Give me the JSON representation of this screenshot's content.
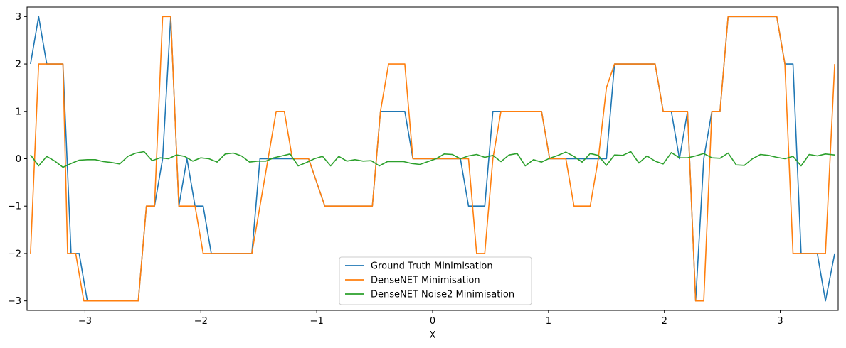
{
  "chart_data": {
    "type": "line",
    "title": "",
    "xlabel": "X",
    "ylabel": "",
    "xlim": [
      -3.5,
      3.5
    ],
    "ylim": [
      -3.2,
      3.2
    ],
    "xticks": [
      -3,
      -2,
      -1,
      0,
      1,
      2,
      3
    ],
    "yticks": [
      -3,
      -2,
      -1,
      0,
      1,
      2,
      3
    ],
    "tick_labels_x": [
      "−3",
      "−2",
      "−1",
      "0",
      "1",
      "2",
      "3"
    ],
    "tick_labels_y": [
      "−3",
      "−2",
      "−1",
      "0",
      "1",
      "2",
      "3"
    ],
    "grid": false,
    "legend_position": "bottom-center",
    "series": [
      {
        "name": "Ground Truth Minimisation",
        "color": "#1f77b4",
        "x": [
          -3.47,
          -3.4,
          -3.33,
          -3.26,
          -3.19,
          -3.12,
          -3.05,
          -2.98,
          -2.54,
          -2.47,
          -2.4,
          -2.33,
          -2.26,
          -2.19,
          -2.12,
          -2.05,
          -1.98,
          -1.91,
          -1.84,
          -1.77,
          -1.56,
          -1.49,
          -1.35,
          -1.21,
          -1.07,
          -0.93,
          -0.86,
          -0.52,
          -0.45,
          -0.38,
          -0.24,
          -0.17,
          -0.1,
          0.24,
          0.31,
          0.38,
          0.45,
          0.52,
          0.59,
          0.94,
          1.01,
          1.5,
          1.57,
          1.64,
          1.92,
          1.99,
          2.06,
          2.13,
          2.2,
          2.27,
          2.34,
          2.41,
          2.48,
          2.55,
          2.62,
          2.97,
          3.04,
          3.11,
          3.18,
          3.25,
          3.32,
          3.39,
          3.47
        ],
        "y": [
          2,
          3,
          2,
          2,
          2,
          -2,
          -2,
          -3,
          -3,
          -1,
          -1,
          0,
          3,
          -1,
          0,
          -1,
          -1,
          -2,
          -2,
          -2,
          -2,
          0,
          0,
          0,
          0,
          -1,
          -1,
          -1,
          1,
          1,
          1,
          0,
          0,
          0,
          -1,
          -1,
          -1,
          1,
          1,
          1,
          0,
          0,
          2,
          2,
          2,
          1,
          1,
          0,
          1,
          -3,
          0,
          1,
          1,
          3,
          3,
          3,
          2,
          2,
          -2,
          -2,
          -2,
          -3,
          -2
        ]
      },
      {
        "name": "DenseNET Minimisation",
        "color": "#ff7f0e",
        "x": [
          -3.47,
          -3.4,
          -3.33,
          -3.26,
          -3.19,
          -3.15,
          -3.08,
          -3.01,
          -2.94,
          -2.54,
          -2.47,
          -2.4,
          -2.33,
          -2.26,
          -2.19,
          -2.12,
          -2.05,
          -1.98,
          -1.91,
          -1.84,
          -1.77,
          -1.56,
          -1.42,
          -1.35,
          -1.28,
          -1.21,
          -1.07,
          -0.93,
          -0.86,
          -0.52,
          -0.45,
          -0.38,
          -0.31,
          -0.24,
          -0.17,
          -0.1,
          0.31,
          0.38,
          0.45,
          0.52,
          0.59,
          0.94,
          1.01,
          1.15,
          1.22,
          1.36,
          1.43,
          1.5,
          1.57,
          1.64,
          1.92,
          1.99,
          2.06,
          2.2,
          2.27,
          2.34,
          2.41,
          2.48,
          2.55,
          2.62,
          2.97,
          3.04,
          3.11,
          3.18,
          3.25,
          3.32,
          3.39,
          3.47
        ],
        "y": [
          -2,
          2,
          2,
          2,
          2,
          -2,
          -2,
          -3,
          -3,
          -3,
          -1,
          -1,
          3,
          3,
          -1,
          -1,
          -1,
          -2,
          -2,
          -2,
          -2,
          -2,
          0,
          1,
          1,
          0,
          0,
          -1,
          -1,
          -1,
          1,
          2,
          2,
          2,
          0,
          0,
          0,
          -2,
          -2,
          0,
          1,
          1,
          0,
          0,
          -1,
          -1,
          0,
          1.5,
          2,
          2,
          2,
          1,
          1,
          1,
          -3,
          -3,
          1,
          1,
          3,
          3,
          3,
          2,
          -2,
          -2,
          -2,
          -2,
          -2,
          2
        ]
      },
      {
        "name": "DenseNET Noise2 Minimisation",
        "color": "#2ca02c",
        "x": [
          -3.47,
          -3.4,
          -3.33,
          -3.26,
          -3.19,
          -3.12,
          -3.05,
          -2.98,
          -2.91,
          -2.84,
          -2.77,
          -2.7,
          -2.63,
          -2.56,
          -2.49,
          -2.42,
          -2.35,
          -2.28,
          -2.21,
          -2.14,
          -2.07,
          -2.0,
          -1.93,
          -1.86,
          -1.79,
          -1.72,
          -1.65,
          -1.58,
          -1.51,
          -1.44,
          -1.37,
          -1.3,
          -1.23,
          -1.16,
          -1.09,
          -1.02,
          -0.95,
          -0.88,
          -0.81,
          -0.74,
          -0.67,
          -0.6,
          -0.53,
          -0.46,
          -0.39,
          -0.32,
          -0.25,
          -0.18,
          -0.11,
          -0.04,
          0.03,
          0.1,
          0.17,
          0.24,
          0.31,
          0.38,
          0.45,
          0.52,
          0.59,
          0.66,
          0.73,
          0.8,
          0.87,
          0.94,
          1.01,
          1.08,
          1.15,
          1.22,
          1.29,
          1.36,
          1.43,
          1.5,
          1.57,
          1.64,
          1.71,
          1.78,
          1.85,
          1.92,
          1.99,
          2.06,
          2.13,
          2.2,
          2.27,
          2.34,
          2.41,
          2.48,
          2.55,
          2.62,
          2.69,
          2.76,
          2.83,
          2.9,
          2.97,
          3.04,
          3.11,
          3.18,
          3.25,
          3.32,
          3.39,
          3.47
        ],
        "y": [
          0.08,
          -0.15,
          0.05,
          -0.05,
          -0.18,
          -0.1,
          -0.03,
          -0.02,
          -0.02,
          -0.06,
          -0.08,
          -0.11,
          0.05,
          0.12,
          0.15,
          -0.04,
          0.02,
          0.0,
          0.08,
          0.05,
          -0.05,
          0.02,
          0.0,
          -0.07,
          0.1,
          0.12,
          0.06,
          -0.07,
          -0.05,
          -0.05,
          0.02,
          0.06,
          0.1,
          -0.15,
          -0.08,
          0.0,
          0.05,
          -0.15,
          0.05,
          -0.05,
          -0.02,
          -0.05,
          -0.04,
          -0.15,
          -0.06,
          -0.06,
          -0.06,
          -0.1,
          -0.12,
          -0.06,
          0.0,
          0.1,
          0.09,
          0.0,
          0.06,
          0.09,
          0.03,
          0.07,
          -0.06,
          0.08,
          0.11,
          -0.15,
          -0.02,
          -0.07,
          0.01,
          0.07,
          0.14,
          0.05,
          -0.07,
          0.11,
          0.07,
          -0.14,
          0.08,
          0.07,
          0.15,
          -0.09,
          0.06,
          -0.05,
          -0.11,
          0.13,
          0.02,
          0.02,
          0.06,
          0.11,
          0.02,
          0.01,
          0.12,
          -0.13,
          -0.14,
          0.0,
          0.09,
          0.07,
          0.03,
          0.0,
          0.05,
          -0.15,
          0.09,
          0.06,
          0.1,
          0.08
        ]
      }
    ]
  }
}
